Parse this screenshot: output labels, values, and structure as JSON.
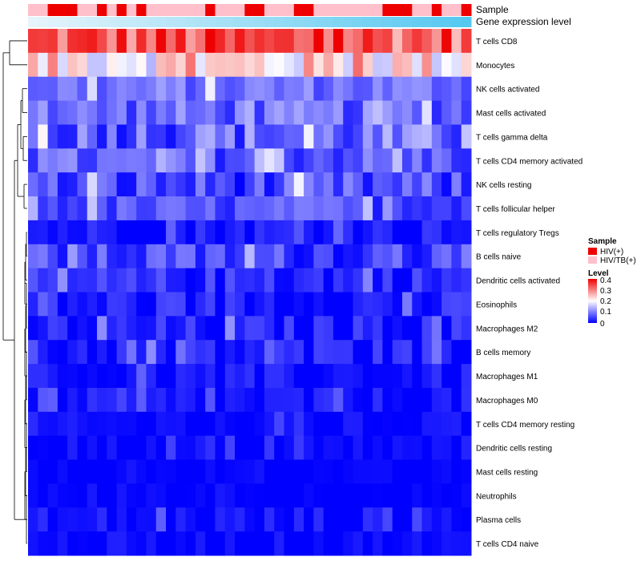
{
  "chart_data": {
    "type": "heatmap",
    "title": "",
    "n_samples": 45,
    "annotation_rows": [
      {
        "label": "Sample",
        "kind": "categorical"
      },
      {
        "label": "Gene expression level",
        "kind": "gradient",
        "from": "#e6f4fb",
        "to": "#55c8f0"
      }
    ],
    "sample_groups": [
      1,
      1,
      0,
      0,
      0,
      1,
      1,
      0,
      1,
      0,
      1,
      0,
      1,
      1,
      1,
      1,
      1,
      1,
      0,
      1,
      1,
      1,
      0,
      0,
      1,
      1,
      1,
      0,
      0,
      1,
      1,
      1,
      1,
      1,
      1,
      1,
      0,
      0,
      0,
      1,
      1,
      0,
      1,
      1,
      0
    ],
    "rows": [
      {
        "name": "T cells CD8",
        "base": 0.33,
        "spread": 0.08
      },
      {
        "name": "Monocytes",
        "base": 0.22,
        "spread": 0.08
      },
      {
        "name": "NK cells activated",
        "base": 0.09,
        "spread": 0.04
      },
      {
        "name": "Mast cells activated",
        "base": 0.08,
        "spread": 0.05
      },
      {
        "name": "T cells gamma delta",
        "base": 0.08,
        "spread": 0.07
      },
      {
        "name": "T cells CD4 memory activated",
        "base": 0.07,
        "spread": 0.05
      },
      {
        "name": "NK cells resting",
        "base": 0.05,
        "spread": 0.06
      },
      {
        "name": "T cells follicular helper",
        "base": 0.06,
        "spread": 0.04
      },
      {
        "name": "T cells regulatory  Tregs",
        "base": 0.02,
        "spread": 0.03
      },
      {
        "name": "B cells naive",
        "base": 0.05,
        "spread": 0.05
      },
      {
        "name": "Dendritic cells activated",
        "base": 0.03,
        "spread": 0.04
      },
      {
        "name": "Eosinophils",
        "base": 0.02,
        "spread": 0.04
      },
      {
        "name": "Macrophages M2",
        "base": 0.02,
        "spread": 0.04
      },
      {
        "name": "B cells memory",
        "base": 0.02,
        "spread": 0.04
      },
      {
        "name": "Macrophages M1",
        "base": 0.01,
        "spread": 0.03
      },
      {
        "name": "Macrophages M0",
        "base": 0.01,
        "spread": 0.03
      },
      {
        "name": "T cells CD4 memory resting",
        "base": 0.005,
        "spread": 0.02
      },
      {
        "name": "Dendritic cells resting",
        "base": 0.005,
        "spread": 0.02
      },
      {
        "name": "Mast cells resting",
        "base": 0.0,
        "spread": 0.01
      },
      {
        "name": "Neutrophils",
        "base": 0.0,
        "spread": 0.01
      },
      {
        "name": "Plasma cells",
        "base": 0.01,
        "spread": 0.03
      },
      {
        "name": "T cells CD4 naive",
        "base": 0.005,
        "spread": 0.02
      }
    ],
    "legend": {
      "sample": {
        "title": "Sample",
        "items": [
          {
            "label": "HIV(+)",
            "color": "#ee0000"
          },
          {
            "label": "HIV/TB(+)",
            "color": "#ffc0cb"
          }
        ]
      },
      "level": {
        "title": "Level",
        "range": [
          0,
          0.4
        ],
        "ticks": [
          "0.4",
          "0.3",
          "0.2",
          "0.1",
          "0"
        ],
        "colors": {
          "low": "#0000ff",
          "mid": "#ffffff",
          "high": "#ee0000"
        }
      }
    },
    "dendrogram": {
      "side": "left"
    }
  }
}
